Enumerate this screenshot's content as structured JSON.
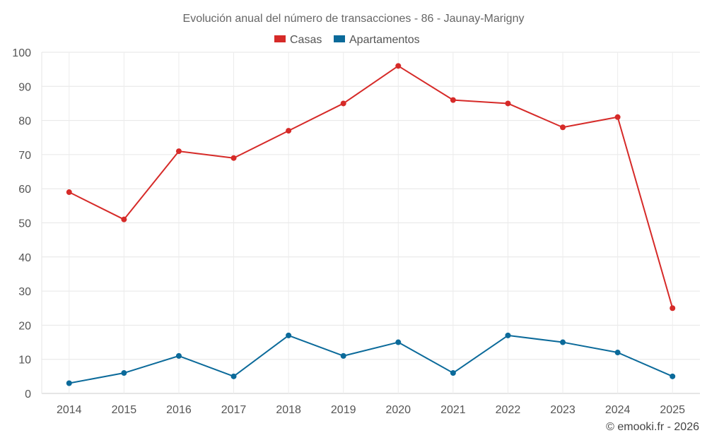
{
  "chart_data": {
    "type": "line",
    "title": "Evolución anual del número de transacciones - 86 - Jaunay-Marigny",
    "categories": [
      "2014",
      "2015",
      "2016",
      "2017",
      "2018",
      "2019",
      "2020",
      "2021",
      "2022",
      "2023",
      "2024",
      "2025"
    ],
    "series": [
      {
        "name": "Casas",
        "color": "#d62a28",
        "values": [
          59,
          51,
          71,
          69,
          77,
          85,
          96,
          86,
          85,
          78,
          81,
          25
        ]
      },
      {
        "name": "Apartamentos",
        "color": "#0b6a9a",
        "values": [
          3,
          6,
          11,
          5,
          17,
          11,
          15,
          6,
          17,
          15,
          12,
          5
        ]
      }
    ],
    "ylim": [
      0,
      100
    ],
    "yticks": [
      0,
      10,
      20,
      30,
      40,
      50,
      60,
      70,
      80,
      90,
      100
    ],
    "xlabel": "",
    "ylabel": "",
    "grid": true,
    "legend": "top-center"
  },
  "credit": "© emooki.fr - 2026"
}
